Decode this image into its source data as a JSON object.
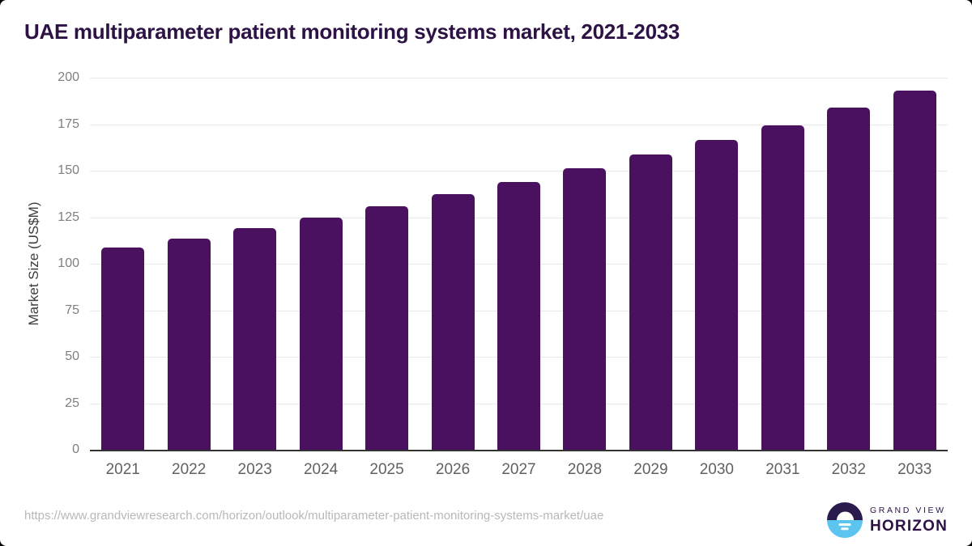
{
  "page": {
    "source_url": "https://www.grandviewresearch.com/horizon/outlook/multiparameter-patient-monitoring-systems-market/uae",
    "logo": {
      "line1": "GRAND VIEW",
      "line2": "HORIZON"
    }
  },
  "colors": {
    "bar": "#4a1160",
    "title-color": "#2d1245",
    "grid": "#e9e9e9",
    "axis": "#333333",
    "ytick": "#7f7f7f",
    "xtick": "#616161",
    "url": "#b8b8b8",
    "logo-dark": "#2b1b4d",
    "logo-blue": "#5bc4ef"
  },
  "chart_data": {
    "type": "bar",
    "title": "UAE multiparameter patient monitoring systems market, 2021-2033",
    "categories": [
      "2021",
      "2022",
      "2023",
      "2024",
      "2025",
      "2026",
      "2027",
      "2028",
      "2029",
      "2030",
      "2031",
      "2032",
      "2033"
    ],
    "values": [
      108.6,
      113.7,
      119.3,
      124.9,
      131.0,
      137.2,
      143.9,
      151.1,
      158.6,
      166.4,
      174.5,
      184.0,
      192.9
    ],
    "xlabel": "",
    "ylabel": "Market Size (US$M)",
    "ylim": [
      0,
      200
    ],
    "yticks": [
      0,
      25,
      50,
      75,
      100,
      125,
      150,
      175,
      200
    ],
    "grid": true,
    "legend": false,
    "bar_color": "#4a1160"
  }
}
